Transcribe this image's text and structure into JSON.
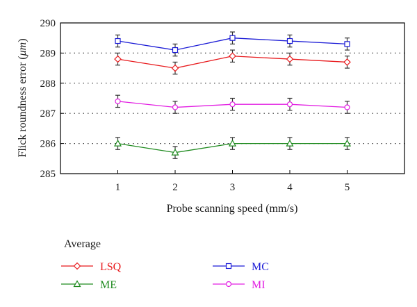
{
  "chart_data": {
    "type": "line",
    "xlabel": "Probe scanning speed (mm/s)",
    "ylabel_prefix": "Flick roundness error (",
    "ylabel_unit": "μm",
    "ylabel_suffix": ")",
    "x": [
      1,
      2,
      3,
      4,
      5
    ],
    "xlim": [
      0,
      6
    ],
    "ylim": [
      285,
      290
    ],
    "xticks": [
      "1",
      "2",
      "3",
      "4",
      "5"
    ],
    "yticks": [
      "285",
      "286",
      "287",
      "288",
      "289",
      "290"
    ],
    "grid": "dotted horizontal",
    "legend_title": "Average",
    "legend_placement": "below",
    "series": [
      {
        "name": "LSQ",
        "marker": "diamond",
        "color": "#e8191c",
        "values": [
          288.8,
          288.5,
          288.9,
          288.8,
          288.7
        ],
        "error": [
          0.2,
          0.2,
          0.2,
          0.2,
          0.2
        ]
      },
      {
        "name": "MC",
        "marker": "square",
        "color": "#1b1bd6",
        "values": [
          289.4,
          289.1,
          289.5,
          289.4,
          289.3
        ],
        "error": [
          0.2,
          0.2,
          0.2,
          0.2,
          0.2
        ]
      },
      {
        "name": "ME",
        "marker": "triangle",
        "color": "#1e8a1e",
        "values": [
          286.0,
          285.7,
          286.0,
          286.0,
          286.0
        ],
        "error": [
          0.2,
          0.2,
          0.2,
          0.2,
          0.2
        ]
      },
      {
        "name": "MI",
        "marker": "circle",
        "color": "#e21ee2",
        "values": [
          287.4,
          287.2,
          287.3,
          287.3,
          287.2
        ],
        "error": [
          0.2,
          0.2,
          0.2,
          0.2,
          0.2
        ]
      }
    ]
  }
}
